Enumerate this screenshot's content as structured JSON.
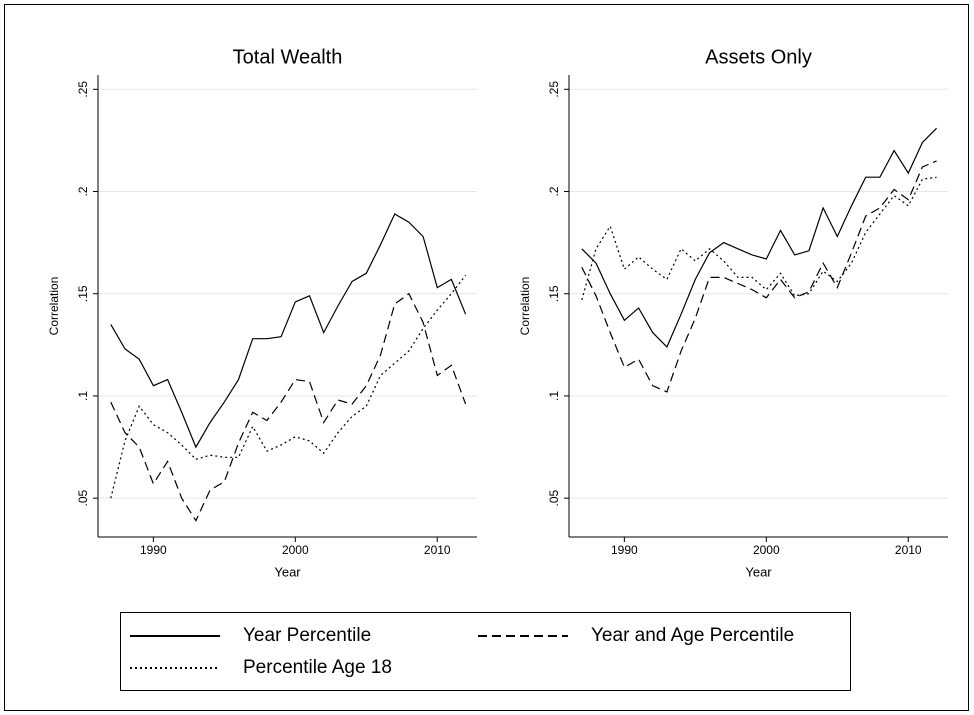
{
  "chart_data": [
    {
      "type": "line",
      "title": "Total Wealth",
      "x_label": "Year",
      "y_label": "Correlation",
      "x": [
        1987,
        1988,
        1989,
        1990,
        1991,
        1992,
        1993,
        1994,
        1995,
        1996,
        1997,
        1998,
        1999,
        2000,
        2001,
        2002,
        2003,
        2004,
        2005,
        2006,
        2007,
        2008,
        2009,
        2010,
        2011,
        2012
      ],
      "series": [
        {
          "name": "Year Percentile",
          "color": "#000000",
          "style": "solid",
          "values": [
            0.135,
            0.123,
            0.118,
            0.105,
            0.108,
            0.092,
            0.075,
            0.087,
            0.097,
            0.108,
            0.128,
            0.128,
            0.129,
            0.146,
            0.149,
            0.131,
            0.144,
            0.156,
            0.16,
            0.174,
            0.189,
            0.185,
            0.178,
            0.153,
            0.157,
            0.14
          ]
        },
        {
          "name": "Year and Age Percentile",
          "color": "#000000",
          "style": "dashed",
          "values": [
            0.097,
            0.082,
            0.075,
            0.057,
            0.068,
            0.05,
            0.039,
            0.054,
            0.058,
            0.077,
            0.092,
            0.088,
            0.097,
            0.108,
            0.107,
            0.087,
            0.098,
            0.096,
            0.105,
            0.12,
            0.145,
            0.15,
            0.136,
            0.11,
            0.115,
            0.096
          ]
        },
        {
          "name": "Percentile Age 18",
          "color": "#000000",
          "style": "dotted",
          "values": [
            0.05,
            0.078,
            0.095,
            0.086,
            0.082,
            0.076,
            0.069,
            0.071,
            0.07,
            0.07,
            0.085,
            0.073,
            0.076,
            0.08,
            0.078,
            0.072,
            0.082,
            0.09,
            0.095,
            0.11,
            0.116,
            0.122,
            0.133,
            0.142,
            0.15,
            0.159
          ]
        }
      ],
      "xlim": [
        1986.1,
        2012.8
      ],
      "ylim": [
        0.031,
        0.257
      ],
      "xticks": [
        1990,
        2000,
        2010
      ],
      "yticks": [
        {
          "value": 0.05,
          "label": ".05"
        },
        {
          "value": 0.1,
          "label": ".1"
        },
        {
          "value": 0.15,
          "label": ".15"
        },
        {
          "value": 0.2,
          "label": ".2"
        },
        {
          "value": 0.25,
          "label": ".25"
        }
      ],
      "grid": true
    },
    {
      "type": "line",
      "title": "Assets Only",
      "x_label": "Year",
      "y_label": "Correlation",
      "x": [
        1987,
        1988,
        1989,
        1990,
        1991,
        1992,
        1993,
        1994,
        1995,
        1996,
        1997,
        1998,
        1999,
        2000,
        2001,
        2002,
        2003,
        2004,
        2005,
        2006,
        2007,
        2008,
        2009,
        2010,
        2011,
        2012
      ],
      "series": [
        {
          "name": "Year Percentile",
          "color": "#000000",
          "style": "solid",
          "values": [
            0.172,
            0.165,
            0.15,
            0.137,
            0.143,
            0.131,
            0.124,
            0.14,
            0.157,
            0.17,
            0.175,
            0.172,
            0.169,
            0.167,
            0.181,
            0.169,
            0.171,
            0.192,
            0.178,
            0.193,
            0.207,
            0.207,
            0.22,
            0.209,
            0.224,
            0.231
          ]
        },
        {
          "name": "Year and Age Percentile",
          "color": "#000000",
          "style": "dashed",
          "values": [
            0.163,
            0.149,
            0.131,
            0.114,
            0.118,
            0.105,
            0.102,
            0.122,
            0.138,
            0.158,
            0.158,
            0.155,
            0.152,
            0.148,
            0.157,
            0.148,
            0.151,
            0.165,
            0.153,
            0.17,
            0.188,
            0.192,
            0.201,
            0.196,
            0.212,
            0.215
          ]
        },
        {
          "name": "Percentile Age 18",
          "color": "#000000",
          "style": "dotted",
          "values": [
            0.147,
            0.172,
            0.183,
            0.162,
            0.168,
            0.162,
            0.157,
            0.172,
            0.166,
            0.172,
            0.166,
            0.158,
            0.158,
            0.152,
            0.16,
            0.149,
            0.15,
            0.161,
            0.156,
            0.165,
            0.18,
            0.189,
            0.198,
            0.193,
            0.206,
            0.207
          ]
        }
      ],
      "xlim": [
        1986.1,
        2012.8
      ],
      "ylim": [
        0.031,
        0.257
      ],
      "xticks": [
        1990,
        2000,
        2010
      ],
      "yticks": [
        {
          "value": 0.05,
          "label": ".05"
        },
        {
          "value": 0.1,
          "label": ".1"
        },
        {
          "value": 0.15,
          "label": ".15"
        },
        {
          "value": 0.2,
          "label": ".2"
        },
        {
          "value": 0.25,
          "label": ".25"
        }
      ],
      "grid": true
    }
  ]
}
